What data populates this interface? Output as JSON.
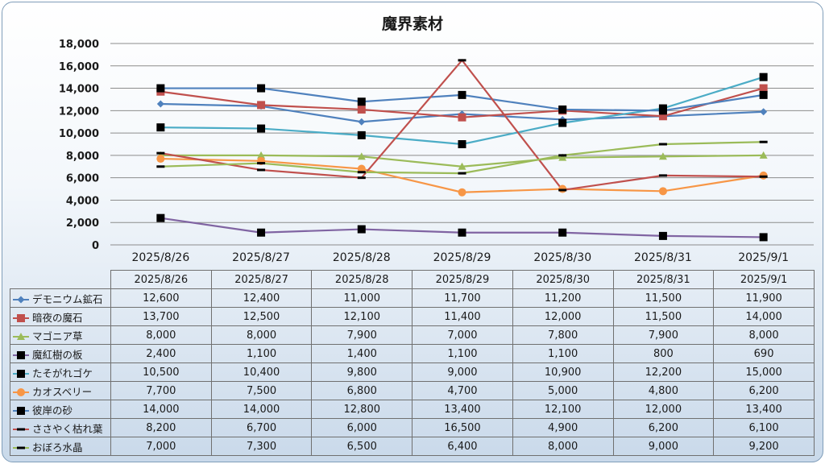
{
  "chart_data": {
    "type": "line",
    "title": "魔界素材",
    "categories": [
      "2025/8/26",
      "2025/8/27",
      "2025/8/28",
      "2025/8/29",
      "2025/8/30",
      "2025/8/31",
      "2025/9/1"
    ],
    "ylim": [
      0,
      18000
    ],
    "ytick_labels": [
      "0",
      "2,000",
      "4,000",
      "6,000",
      "8,000",
      "10,000",
      "12,000",
      "14,000",
      "16,000",
      "18,000"
    ],
    "grid": true,
    "legend": "data-table",
    "series": [
      {
        "name": "デモニウム鉱石",
        "color": "#4f81bd",
        "marker": "diamond",
        "values": [
          12600,
          12400,
          11000,
          11700,
          11200,
          11500,
          11900
        ],
        "labels": [
          "12,600",
          "12,400",
          "11,000",
          "11,700",
          "11,200",
          "11,500",
          "11,900"
        ]
      },
      {
        "name": "暗夜の魔石",
        "color": "#c0504d",
        "marker": "square",
        "values": [
          13700,
          12500,
          12100,
          11400,
          12000,
          11500,
          14000
        ],
        "labels": [
          "13,700",
          "12,500",
          "12,100",
          "11,400",
          "12,000",
          "11,500",
          "14,000"
        ]
      },
      {
        "name": "マゴニア草",
        "color": "#9bbb59",
        "marker": "triangle",
        "values": [
          8000,
          8000,
          7900,
          7000,
          7800,
          7900,
          8000
        ],
        "labels": [
          "8,000",
          "8,000",
          "7,900",
          "7,000",
          "7,800",
          "7,900",
          "8,000"
        ]
      },
      {
        "name": "魔紅樹の板",
        "color": "#8064a2",
        "marker": "blacksquare",
        "values": [
          2400,
          1100,
          1400,
          1100,
          1100,
          800,
          690
        ],
        "labels": [
          "2,400",
          "1,100",
          "1,400",
          "1,100",
          "1,100",
          "800",
          "690"
        ]
      },
      {
        "name": "たそがれゴケ",
        "color": "#4bacc6",
        "marker": "blacksquare",
        "values": [
          10500,
          10400,
          9800,
          9000,
          10900,
          12200,
          15000
        ],
        "labels": [
          "10,500",
          "10,400",
          "9,800",
          "9,000",
          "10,900",
          "12,200",
          "15,000"
        ]
      },
      {
        "name": "カオスベリー",
        "color": "#f79646",
        "marker": "circle",
        "values": [
          7700,
          7500,
          6800,
          4700,
          5000,
          4800,
          6200
        ],
        "labels": [
          "7,700",
          "7,500",
          "6,800",
          "4,700",
          "5,000",
          "4,800",
          "6,200"
        ]
      },
      {
        "name": "彼岸の砂",
        "color": "#4f81bd",
        "marker": "blacksquare",
        "values": [
          14000,
          14000,
          12800,
          13400,
          12100,
          12000,
          13400
        ],
        "labels": [
          "14,000",
          "14,000",
          "12,800",
          "13,400",
          "12,100",
          "12,000",
          "13,400"
        ]
      },
      {
        "name": "ささやく枯れ葉",
        "color": "#c0504d",
        "marker": "dash",
        "values": [
          8200,
          6700,
          6000,
          16500,
          4900,
          6200,
          6100
        ],
        "labels": [
          "8,200",
          "6,700",
          "6,000",
          "16,500",
          "4,900",
          "6,200",
          "6,100"
        ]
      },
      {
        "name": "おぼろ水晶",
        "color": "#9bbb59",
        "marker": "dash",
        "values": [
          7000,
          7300,
          6500,
          6400,
          8000,
          9000,
          9200
        ],
        "labels": [
          "7,000",
          "7,300",
          "6,500",
          "6,400",
          "8,000",
          "9,000",
          "9,200"
        ]
      }
    ]
  }
}
